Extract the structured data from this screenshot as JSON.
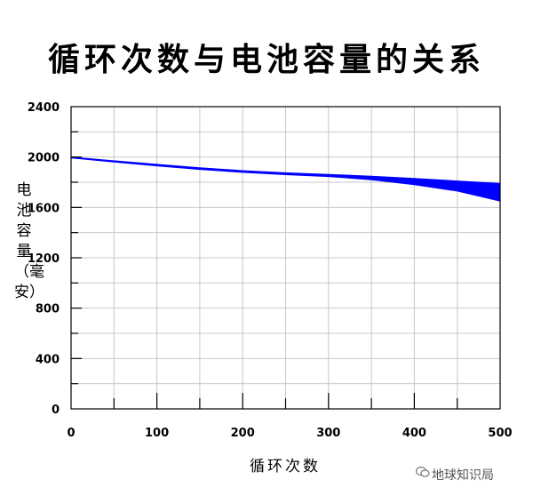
{
  "chart_data": {
    "type": "area",
    "title": "循环次数与电池容量的关系",
    "xlabel": "循环次数",
    "ylabel": "电池容量（毫安）",
    "xlim": [
      0,
      500
    ],
    "ylim": [
      0,
      2400
    ],
    "x_ticks": [
      0,
      100,
      200,
      300,
      400,
      500
    ],
    "y_ticks": [
      0,
      400,
      800,
      1200,
      1600,
      2000,
      2400
    ],
    "grid": true,
    "color": "#0000ff",
    "series": [
      {
        "x": [
          0,
          50,
          100,
          150,
          200,
          250,
          300,
          350,
          400,
          450,
          500
        ],
        "upper": [
          2000,
          1970,
          1942,
          1915,
          1892,
          1875,
          1862,
          1848,
          1830,
          1810,
          1790
        ],
        "lower": [
          1993,
          1960,
          1930,
          1902,
          1878,
          1860,
          1845,
          1820,
          1780,
          1730,
          1650
        ]
      }
    ]
  },
  "watermark": "地球知识局"
}
